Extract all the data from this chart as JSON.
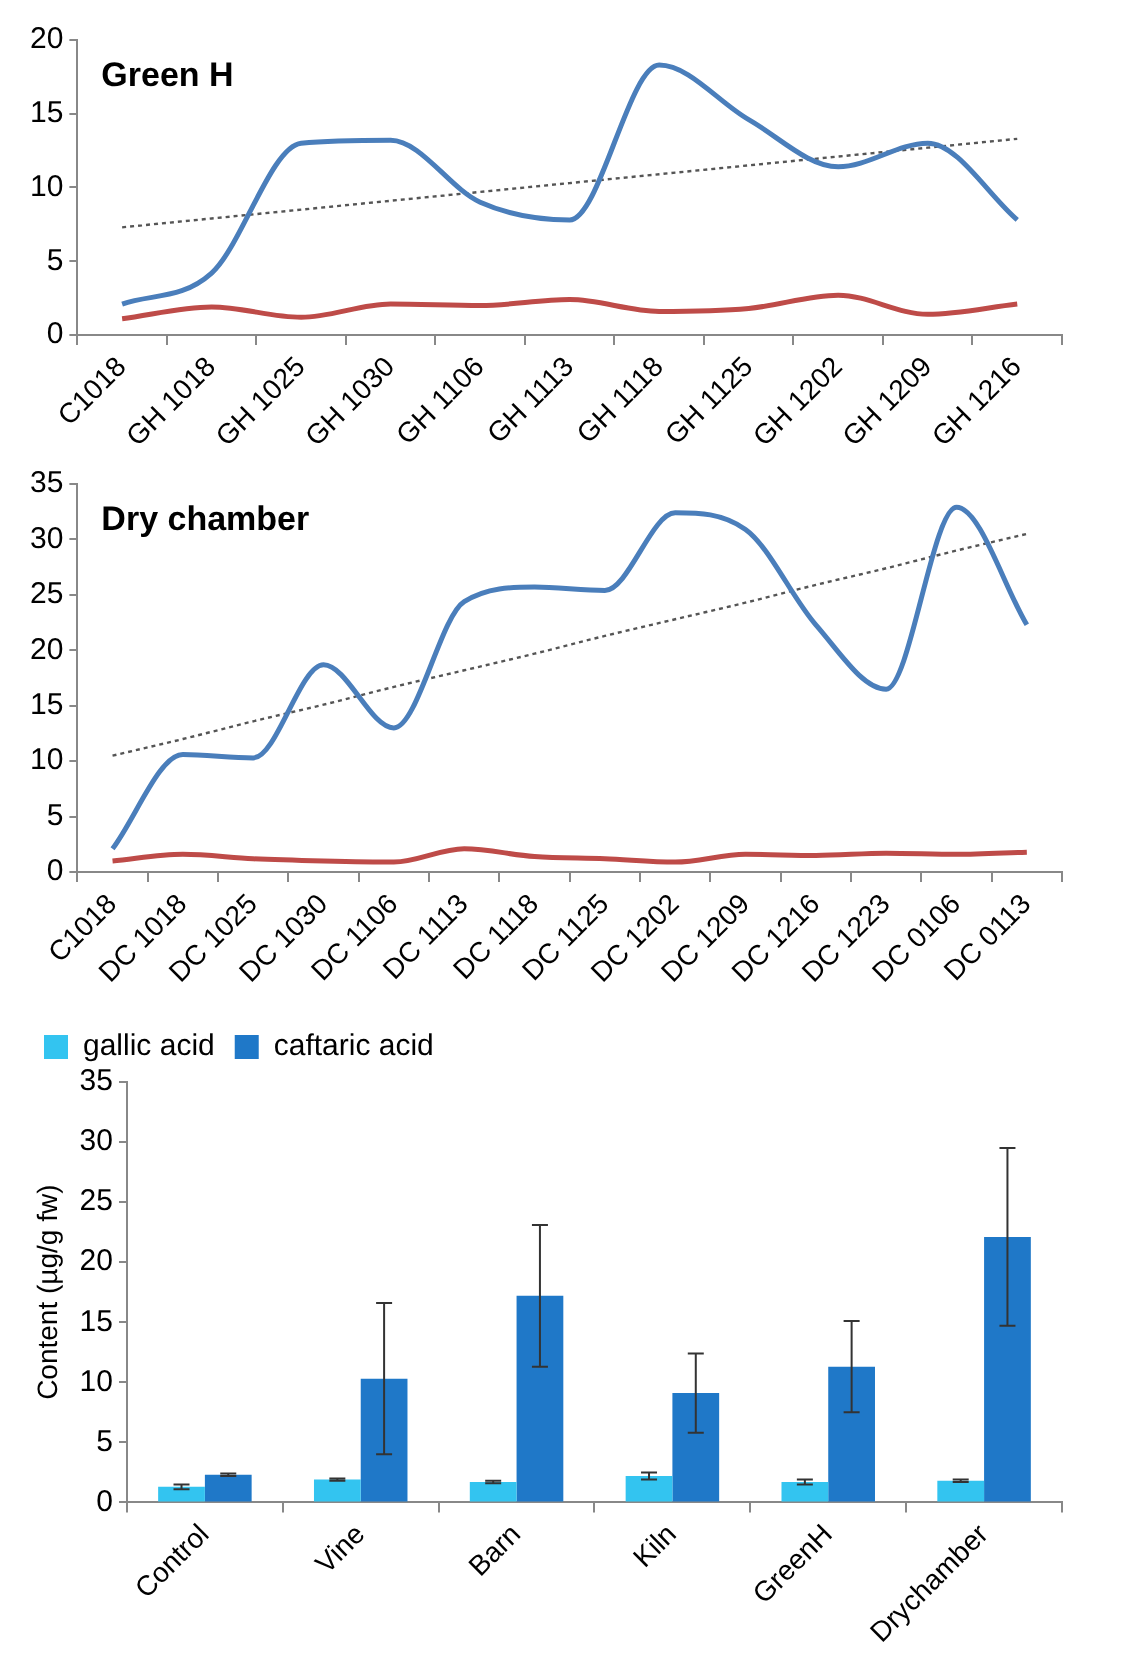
{
  "chart_data": [
    {
      "type": "line",
      "title": "Green H",
      "categories": [
        "C1018",
        "GH 1018",
        "GH 1025",
        "GH 1030",
        "GH 1106",
        "GH 1113",
        "GH 1118",
        "GH 1125",
        "GH 1202",
        "GH 1209",
        "GH 1216"
      ],
      "series": [
        {
          "color": "#4a7ebb",
          "values": [
            2.1,
            4.2,
            13.0,
            13.2,
            9.0,
            7.8,
            18.3,
            14.6,
            11.4,
            13.0,
            7.8
          ]
        },
        {
          "color": "#be4b48",
          "values": [
            1.1,
            1.9,
            1.2,
            2.1,
            2.0,
            2.4,
            1.6,
            1.8,
            2.7,
            1.4,
            2.1
          ]
        },
        {
          "color": "#555555",
          "line_style": "dotted",
          "values": [
            7.3,
            7.9,
            8.5,
            9.1,
            9.7,
            10.3,
            10.9,
            11.5,
            12.1,
            12.7,
            13.3
          ]
        }
      ],
      "ylim": [
        0,
        20
      ],
      "yticks": [
        0,
        5,
        10,
        15,
        20
      ],
      "grid": false,
      "legend": false,
      "marker": "none"
    },
    {
      "type": "line",
      "title": "Dry chamber",
      "categories": [
        "C1018",
        "DC 1018",
        "DC 1025",
        "DC 1030",
        "DC 1106",
        "DC 1113",
        "DC 1118",
        "DC 1125",
        "DC 1202",
        "DC 1209",
        "DC 1216",
        "DC 1223",
        "DC 0106",
        "DC 0113"
      ],
      "series": [
        {
          "color": "#4a7ebb",
          "values": [
            2.1,
            10.6,
            10.3,
            18.7,
            13.0,
            24.4,
            25.7,
            25.4,
            32.4,
            30.9,
            22.3,
            16.5,
            32.9,
            22.3
          ]
        },
        {
          "color": "#be4b48",
          "values": [
            1.0,
            1.6,
            1.2,
            1.0,
            0.9,
            2.1,
            1.4,
            1.2,
            0.9,
            1.6,
            1.5,
            1.7,
            1.6,
            1.8
          ]
        },
        {
          "color": "#555555",
          "line_style": "dotted",
          "values": [
            10.5,
            12.0,
            13.6,
            15.1,
            16.7,
            18.2,
            19.7,
            21.3,
            22.8,
            24.3,
            25.9,
            27.4,
            29.0,
            30.5
          ]
        }
      ],
      "ylim": [
        0,
        35
      ],
      "yticks": [
        0,
        5,
        10,
        15,
        20,
        25,
        30,
        35
      ],
      "grid": false,
      "legend": false,
      "marker": "none"
    },
    {
      "type": "bar",
      "ylabel": "Content (µg/g fw)",
      "categories": [
        "Control",
        "Vine",
        "Barn",
        "Kiln",
        "GreenH",
        "Drychamber"
      ],
      "series": [
        {
          "name": "gallic acid",
          "color": "#33c4f0",
          "values": [
            1.3,
            1.9,
            1.7,
            2.2,
            1.7,
            1.8
          ],
          "errors": [
            0.2,
            0.1,
            0.1,
            0.3,
            0.2,
            0.1
          ]
        },
        {
          "name": "caftaric acid",
          "color": "#1f78c8",
          "values": [
            2.3,
            10.3,
            17.2,
            9.1,
            11.3,
            22.1
          ],
          "errors": [
            0.1,
            6.3,
            5.9,
            3.3,
            3.8,
            7.4
          ]
        }
      ],
      "ylim": [
        0,
        35
      ],
      "yticks": [
        0,
        5,
        10,
        15,
        20,
        25,
        30,
        35
      ],
      "grid": false,
      "legend": "top left"
    }
  ]
}
